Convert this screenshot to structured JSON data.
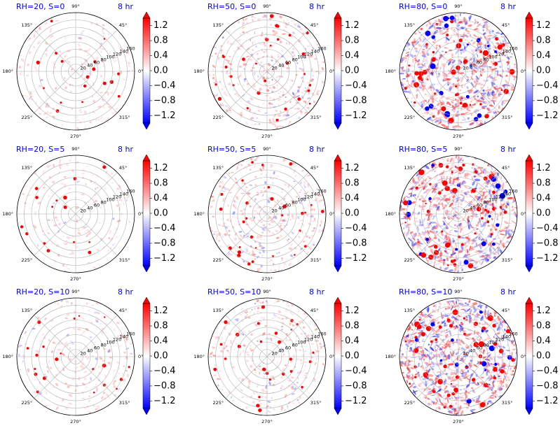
{
  "colors": {
    "title": "#0000ff",
    "positive": "#ff0000",
    "negative": "#0000ff",
    "neutral": "#ffffff",
    "grid": "#b0b0b0",
    "text": "#000000"
  },
  "angle_labels": [
    "0°",
    "45°",
    "90°",
    "135°",
    "180°",
    "225°",
    "270°",
    "315°"
  ],
  "radial_ticks": [
    "20",
    "40",
    "60",
    "80",
    "100",
    "120",
    "140",
    "160"
  ],
  "colorbar_ticks": [
    "1.2",
    "0.8",
    "0.4",
    "0.0",
    "−0.4",
    "−0.8",
    "−1.2"
  ],
  "chart_data": [
    {
      "type": "heatmap",
      "projection": "polar",
      "title": "RH=20, S=0",
      "time_label": "8 hr",
      "rlim": [
        0,
        160
      ],
      "clim": [
        -1.4,
        1.4
      ],
      "colormap": "bwr",
      "grid": true,
      "colorbar": "right",
      "relative_activity": 0.15
    },
    {
      "type": "heatmap",
      "projection": "polar",
      "title": "RH=50, S=0",
      "time_label": "8 hr",
      "rlim": [
        0,
        160
      ],
      "clim": [
        -1.4,
        1.4
      ],
      "colormap": "bwr",
      "grid": true,
      "colorbar": "right",
      "relative_activity": 0.35
    },
    {
      "type": "heatmap",
      "projection": "polar",
      "title": "RH=80, S=0",
      "time_label": "8 hr",
      "rlim": [
        0,
        160
      ],
      "clim": [
        -1.4,
        1.4
      ],
      "colormap": "bwr",
      "grid": true,
      "colorbar": "right",
      "relative_activity": 0.9
    },
    {
      "type": "heatmap",
      "projection": "polar",
      "title": "RH=20, S=5",
      "time_label": "8 hr",
      "rlim": [
        0,
        160
      ],
      "clim": [
        -1.4,
        1.4
      ],
      "colormap": "bwr",
      "grid": true,
      "colorbar": "right",
      "relative_activity": 0.12
    },
    {
      "type": "heatmap",
      "projection": "polar",
      "title": "RH=50, S=5",
      "time_label": "8 hr",
      "rlim": [
        0,
        160
      ],
      "clim": [
        -1.4,
        1.4
      ],
      "colormap": "bwr",
      "grid": true,
      "colorbar": "right",
      "relative_activity": 0.35
    },
    {
      "type": "heatmap",
      "projection": "polar",
      "title": "RH=80, S=5",
      "time_label": "8 hr",
      "rlim": [
        0,
        160
      ],
      "clim": [
        -1.4,
        1.4
      ],
      "colormap": "bwr",
      "grid": true,
      "colorbar": "right",
      "relative_activity": 0.95
    },
    {
      "type": "heatmap",
      "projection": "polar",
      "title": "RH=20, S=10",
      "time_label": "8 hr",
      "rlim": [
        0,
        160
      ],
      "clim": [
        -1.4,
        1.4
      ],
      "colormap": "bwr",
      "grid": true,
      "colorbar": "right",
      "relative_activity": 0.2
    },
    {
      "type": "heatmap",
      "projection": "polar",
      "title": "RH=50, S=10",
      "time_label": "8 hr",
      "rlim": [
        0,
        160
      ],
      "clim": [
        -1.4,
        1.4
      ],
      "colormap": "bwr",
      "grid": true,
      "colorbar": "right",
      "relative_activity": 0.3
    },
    {
      "type": "heatmap",
      "projection": "polar",
      "title": "RH=80, S=10",
      "time_label": "8 hr",
      "rlim": [
        0,
        160
      ],
      "clim": [
        -1.4,
        1.4
      ],
      "colormap": "bwr",
      "grid": true,
      "colorbar": "right",
      "relative_activity": 1.0
    }
  ]
}
